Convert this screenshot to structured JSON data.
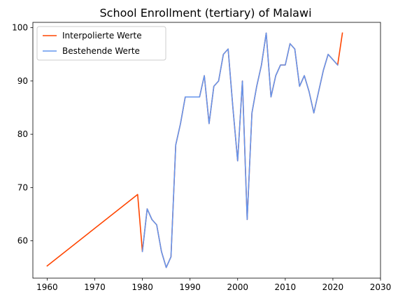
{
  "chart_data": {
    "type": "line",
    "title": "School Enrollment (tertiary) of Malawi",
    "xlabel": "",
    "ylabel": "",
    "xlim": [
      1957,
      2030
    ],
    "ylim": [
      53,
      101
    ],
    "xticks": [
      1960,
      1970,
      1980,
      1990,
      2000,
      2010,
      2020,
      2030
    ],
    "yticks": [
      60,
      70,
      80,
      90,
      100
    ],
    "grid": false,
    "legend_position": "top-left",
    "series": [
      {
        "name": "Interpolierte Werte",
        "color": "#ff4500",
        "x": [
          1960,
          1979,
          1980,
          1981,
          1982,
          1983,
          1984,
          1985,
          1986,
          1987,
          1988,
          1989,
          1990,
          1991,
          1992,
          1993,
          1994,
          1995,
          1996,
          1997,
          1998,
          1999,
          2000,
          2001,
          2002,
          2003,
          2004,
          2005,
          2006,
          2007,
          2008,
          2009,
          2010,
          2011,
          2012,
          2013,
          2014,
          2015,
          2016,
          2017,
          2018,
          2019,
          2020,
          2021,
          2022
        ],
        "y": [
          55.3,
          68.7,
          58.0,
          66.0,
          64.0,
          63.0,
          58.0,
          55.0,
          57.0,
          78.0,
          82.0,
          87.0,
          87.0,
          87.0,
          87.0,
          91.0,
          82.0,
          89.0,
          90.0,
          95.0,
          96.0,
          85.0,
          75.0,
          90.0,
          64.0,
          84.0,
          89.0,
          93.0,
          99.0,
          87.0,
          91.0,
          93.0,
          93.0,
          97.0,
          96.0,
          89.0,
          91.0,
          88.0,
          84.0,
          88.0,
          92.0,
          95.0,
          94.0,
          93.0,
          99.0
        ]
      },
      {
        "name": "Bestehende Werte",
        "color": "#6495ed",
        "x": [
          1980,
          1981,
          1982,
          1983,
          1984,
          1985,
          1986,
          1987,
          1988,
          1989,
          1990,
          1991,
          1992,
          1993,
          1994,
          1995,
          1996,
          1997,
          1998,
          1999,
          2000,
          2001,
          2002,
          2003,
          2004,
          2005,
          2006,
          2007,
          2008,
          2009,
          2010,
          2011,
          2012,
          2013,
          2014,
          2015,
          2016,
          2017,
          2018,
          2019,
          2020,
          2021
        ],
        "y": [
          58.0,
          66.0,
          64.0,
          63.0,
          58.0,
          55.0,
          57.0,
          78.0,
          82.0,
          87.0,
          87.0,
          87.0,
          87.0,
          91.0,
          82.0,
          89.0,
          90.0,
          95.0,
          96.0,
          85.0,
          75.0,
          90.0,
          64.0,
          84.0,
          89.0,
          93.0,
          99.0,
          87.0,
          91.0,
          93.0,
          93.0,
          97.0,
          96.0,
          89.0,
          91.0,
          88.0,
          84.0,
          88.0,
          92.0,
          95.0,
          94.0,
          93.0
        ]
      }
    ]
  }
}
